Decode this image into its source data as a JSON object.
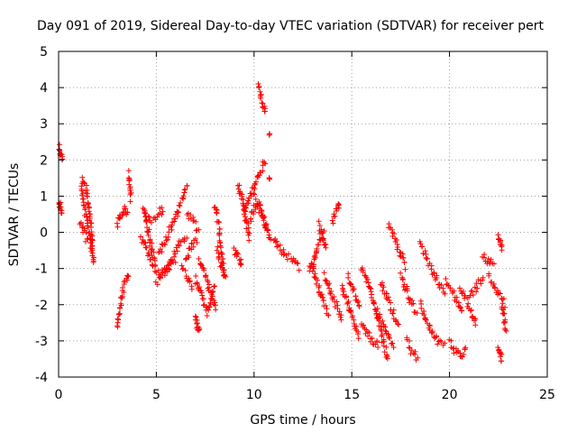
{
  "chart_data": {
    "type": "scatter",
    "title": "Day 091 of 2019, Sidereal Day-to-day VTEC variation (SDTVAR) for receiver pert",
    "xlabel": "GPS time / hours",
    "ylabel": "SDTVAR / TECUs",
    "xlim": [
      0,
      25
    ],
    "ylim": [
      -4,
      5
    ],
    "xticks": [
      "0",
      "5",
      "10",
      "15",
      "20",
      "25"
    ],
    "yticks": [
      "-4",
      "-3",
      "-2",
      "-1",
      "0",
      "1",
      "2",
      "3",
      "4",
      "5"
    ],
    "grid": true,
    "marker": "+",
    "color": "#ff0000",
    "series": [
      {
        "name": "SDTVAR",
        "tracks": [
          [
            [
              0.0,
              2.4
            ],
            [
              0.12,
              2.1
            ],
            [
              0.2,
              2.0
            ]
          ],
          [
            [
              0.0,
              0.8
            ],
            [
              0.1,
              0.7
            ],
            [
              0.2,
              0.55
            ]
          ],
          [
            [
              1.2,
              1.5
            ],
            [
              1.4,
              1.2
            ],
            [
              1.6,
              0.5
            ],
            [
              1.8,
              -0.9
            ]
          ],
          [
            [
              1.1,
              0.3
            ],
            [
              1.3,
              0.0
            ],
            [
              1.5,
              -0.3
            ]
          ],
          [
            [
              1.2,
              1.2
            ],
            [
              1.3,
              0.7
            ],
            [
              1.5,
              0.2
            ],
            [
              1.7,
              -0.5
            ]
          ],
          [
            [
              3.0,
              0.2
            ],
            [
              3.2,
              0.5
            ],
            [
              3.4,
              0.7
            ],
            [
              3.6,
              0.4
            ]
          ],
          [
            [
              3.0,
              -2.6
            ],
            [
              3.2,
              -1.9
            ],
            [
              3.4,
              -1.4
            ],
            [
              3.6,
              -1.1
            ]
          ],
          [
            [
              3.6,
              1.6
            ],
            [
              3.65,
              1.3
            ],
            [
              3.7,
              0.9
            ]
          ],
          [
            [
              4.4,
              0.6
            ],
            [
              4.6,
              0.0
            ],
            [
              4.8,
              -0.6
            ],
            [
              5.0,
              -0.9
            ]
          ],
          [
            [
              4.2,
              -0.1
            ],
            [
              4.5,
              -0.5
            ],
            [
              4.8,
              -0.9
            ],
            [
              5.2,
              -1.2
            ],
            [
              5.6,
              -1.0
            ],
            [
              6.0,
              -0.7
            ]
          ],
          [
            [
              4.3,
              0.6
            ],
            [
              4.7,
              0.3
            ],
            [
              5.1,
              0.5
            ],
            [
              5.4,
              0.7
            ]
          ],
          [
            [
              5.1,
              -0.6
            ],
            [
              5.4,
              -0.3
            ],
            [
              5.8,
              0.2
            ],
            [
              6.2,
              0.7
            ],
            [
              6.6,
              1.3
            ]
          ],
          [
            [
              5.0,
              -1.4
            ],
            [
              5.4,
              -1.1
            ],
            [
              5.8,
              -0.7
            ],
            [
              6.2,
              -0.3
            ],
            [
              6.6,
              -0.1
            ]
          ],
          [
            [
              6.3,
              -1.0
            ],
            [
              6.6,
              -1.3
            ],
            [
              6.9,
              -1.6
            ]
          ],
          [
            [
              6.6,
              0.5
            ],
            [
              6.9,
              0.3
            ],
            [
              7.2,
              0.0
            ]
          ],
          [
            [
              6.5,
              -0.8
            ],
            [
              6.8,
              -0.4
            ],
            [
              7.1,
              -0.2
            ]
          ],
          [
            [
              7.0,
              -1.3
            ],
            [
              7.3,
              -1.7
            ],
            [
              7.6,
              -2.2
            ],
            [
              8.0,
              -1.5
            ]
          ],
          [
            [
              7.2,
              -0.8
            ],
            [
              7.5,
              -1.2
            ],
            [
              7.8,
              -1.7
            ],
            [
              8.1,
              -2.1
            ]
          ],
          [
            [
              7.0,
              -2.3
            ],
            [
              7.1,
              -2.6
            ],
            [
              7.2,
              -2.8
            ]
          ],
          [
            [
              8.0,
              0.7
            ],
            [
              8.2,
              0.2
            ],
            [
              8.3,
              -0.5
            ],
            [
              8.5,
              -1.2
            ]
          ],
          [
            [
              8.1,
              -0.5
            ],
            [
              8.3,
              -0.9
            ],
            [
              8.6,
              -1.3
            ]
          ],
          [
            [
              9.0,
              -0.5
            ],
            [
              9.2,
              -0.7
            ],
            [
              9.4,
              -0.9
            ]
          ],
          [
            [
              9.2,
              1.3
            ],
            [
              9.4,
              0.9
            ],
            [
              9.6,
              0.3
            ],
            [
              9.8,
              -0.2
            ]
          ],
          [
            [
              9.5,
              0.5
            ],
            [
              9.8,
              1.0
            ],
            [
              10.2,
              1.5
            ],
            [
              10.6,
              2.0
            ]
          ],
          [
            [
              10.0,
              1.0
            ],
            [
              10.3,
              0.7
            ],
            [
              10.6,
              0.2
            ],
            [
              10.9,
              -0.2
            ]
          ],
          [
            [
              9.8,
              0.3
            ],
            [
              10.1,
              0.8
            ],
            [
              10.4,
              0.5
            ],
            [
              10.7,
              0.0
            ]
          ],
          [
            [
              10.2,
              4.0
            ],
            [
              10.4,
              3.6
            ],
            [
              10.6,
              3.2
            ]
          ],
          [
            [
              10.8,
              2.7
            ]
          ],
          [
            [
              10.8,
              1.5
            ]
          ],
          [
            [
              11.0,
              -0.2
            ],
            [
              11.3,
              -0.4
            ],
            [
              11.6,
              -0.6
            ],
            [
              12.0,
              -0.8
            ],
            [
              12.4,
              -1.0
            ]
          ],
          [
            [
              12.8,
              -1.0
            ],
            [
              13.0,
              -0.9
            ],
            [
              13.2,
              -0.5
            ],
            [
              13.4,
              -0.2
            ],
            [
              13.6,
              0.0
            ]
          ],
          [
            [
              13.3,
              0.2
            ],
            [
              13.5,
              -0.1
            ],
            [
              13.7,
              -0.5
            ]
          ],
          [
            [
              13.0,
              -1.0
            ],
            [
              13.3,
              -1.5
            ],
            [
              13.6,
              -2.0
            ],
            [
              13.9,
              -2.3
            ]
          ],
          [
            [
              13.6,
              -1.2
            ],
            [
              13.9,
              -1.6
            ],
            [
              14.2,
              -2.0
            ],
            [
              14.5,
              -2.4
            ]
          ],
          [
            [
              14.0,
              0.3
            ],
            [
              14.2,
              0.6
            ],
            [
              14.4,
              0.9
            ]
          ],
          [
            [
              14.5,
              -1.5
            ],
            [
              14.8,
              -2.0
            ],
            [
              15.1,
              -2.5
            ],
            [
              15.4,
              -2.9
            ]
          ],
          [
            [
              14.8,
              -1.2
            ],
            [
              15.1,
              -1.6
            ],
            [
              15.4,
              -2.1
            ]
          ],
          [
            [
              15.5,
              -1.0
            ],
            [
              15.8,
              -1.4
            ],
            [
              16.1,
              -1.9
            ],
            [
              16.4,
              -2.5
            ],
            [
              16.7,
              -3.2
            ],
            [
              16.9,
              -3.5
            ]
          ],
          [
            [
              15.5,
              -2.5
            ],
            [
              15.8,
              -2.8
            ],
            [
              16.1,
              -3.0
            ],
            [
              16.4,
              -3.2
            ]
          ],
          [
            [
              16.3,
              -2.2
            ],
            [
              16.6,
              -2.5
            ],
            [
              16.9,
              -2.9
            ],
            [
              17.2,
              -3.2
            ]
          ],
          [
            [
              16.5,
              -1.4
            ],
            [
              16.8,
              -1.8
            ],
            [
              17.1,
              -2.2
            ],
            [
              17.4,
              -2.6
            ]
          ],
          [
            [
              16.9,
              0.2
            ],
            [
              17.2,
              -0.2
            ],
            [
              17.5,
              -0.6
            ],
            [
              17.8,
              -1.0
            ]
          ],
          [
            [
              17.5,
              -1.2
            ],
            [
              17.8,
              -1.6
            ],
            [
              18.1,
              -2.0
            ],
            [
              18.4,
              -2.3
            ]
          ],
          [
            [
              17.8,
              -3.0
            ],
            [
              18.1,
              -3.3
            ],
            [
              18.4,
              -3.5
            ]
          ],
          [
            [
              18.5,
              -0.3
            ],
            [
              18.8,
              -0.7
            ],
            [
              19.1,
              -1.0
            ],
            [
              19.4,
              -1.4
            ],
            [
              19.8,
              -1.7
            ]
          ],
          [
            [
              18.5,
              -2.0
            ],
            [
              18.8,
              -2.4
            ],
            [
              19.1,
              -2.8
            ],
            [
              19.4,
              -3.0
            ],
            [
              19.8,
              -3.2
            ]
          ],
          [
            [
              19.8,
              -1.3
            ],
            [
              20.1,
              -1.6
            ],
            [
              20.4,
              -1.9
            ],
            [
              20.7,
              -2.3
            ]
          ],
          [
            [
              20.0,
              -3.0
            ],
            [
              20.3,
              -3.3
            ],
            [
              20.6,
              -3.4
            ],
            [
              20.9,
              -3.2
            ]
          ],
          [
            [
              20.5,
              -1.5
            ],
            [
              20.8,
              -1.8
            ],
            [
              21.1,
              -2.2
            ],
            [
              21.4,
              -2.6
            ]
          ],
          [
            [
              21.0,
              -1.8
            ],
            [
              21.4,
              -1.5
            ],
            [
              21.8,
              -1.2
            ]
          ],
          [
            [
              21.7,
              -0.7
            ],
            [
              22.0,
              -0.8
            ],
            [
              22.3,
              -0.9
            ]
          ],
          [
            [
              22.0,
              -1.2
            ],
            [
              22.3,
              -1.5
            ],
            [
              22.6,
              -1.8
            ],
            [
              22.9,
              -2.0
            ]
          ],
          [
            [
              22.5,
              -0.1
            ],
            [
              22.6,
              -0.3
            ],
            [
              22.7,
              -0.5
            ]
          ],
          [
            [
              22.5,
              -3.2
            ],
            [
              22.6,
              -3.4
            ],
            [
              22.7,
              -3.5
            ]
          ],
          [
            [
              22.7,
              -2.0
            ],
            [
              22.8,
              -2.4
            ],
            [
              22.9,
              -2.8
            ]
          ]
        ]
      }
    ]
  }
}
